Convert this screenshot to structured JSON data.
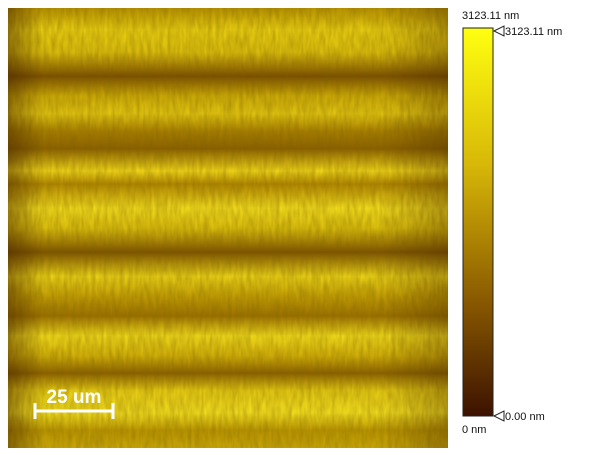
{
  "image": {
    "scale_bar": "25 um"
  },
  "colorbar": {
    "top_label": "3123.11 nm",
    "max_marker": "3123.11 nm",
    "min_marker": "0.00 nm",
    "bottom_label": "0 nm"
  }
}
